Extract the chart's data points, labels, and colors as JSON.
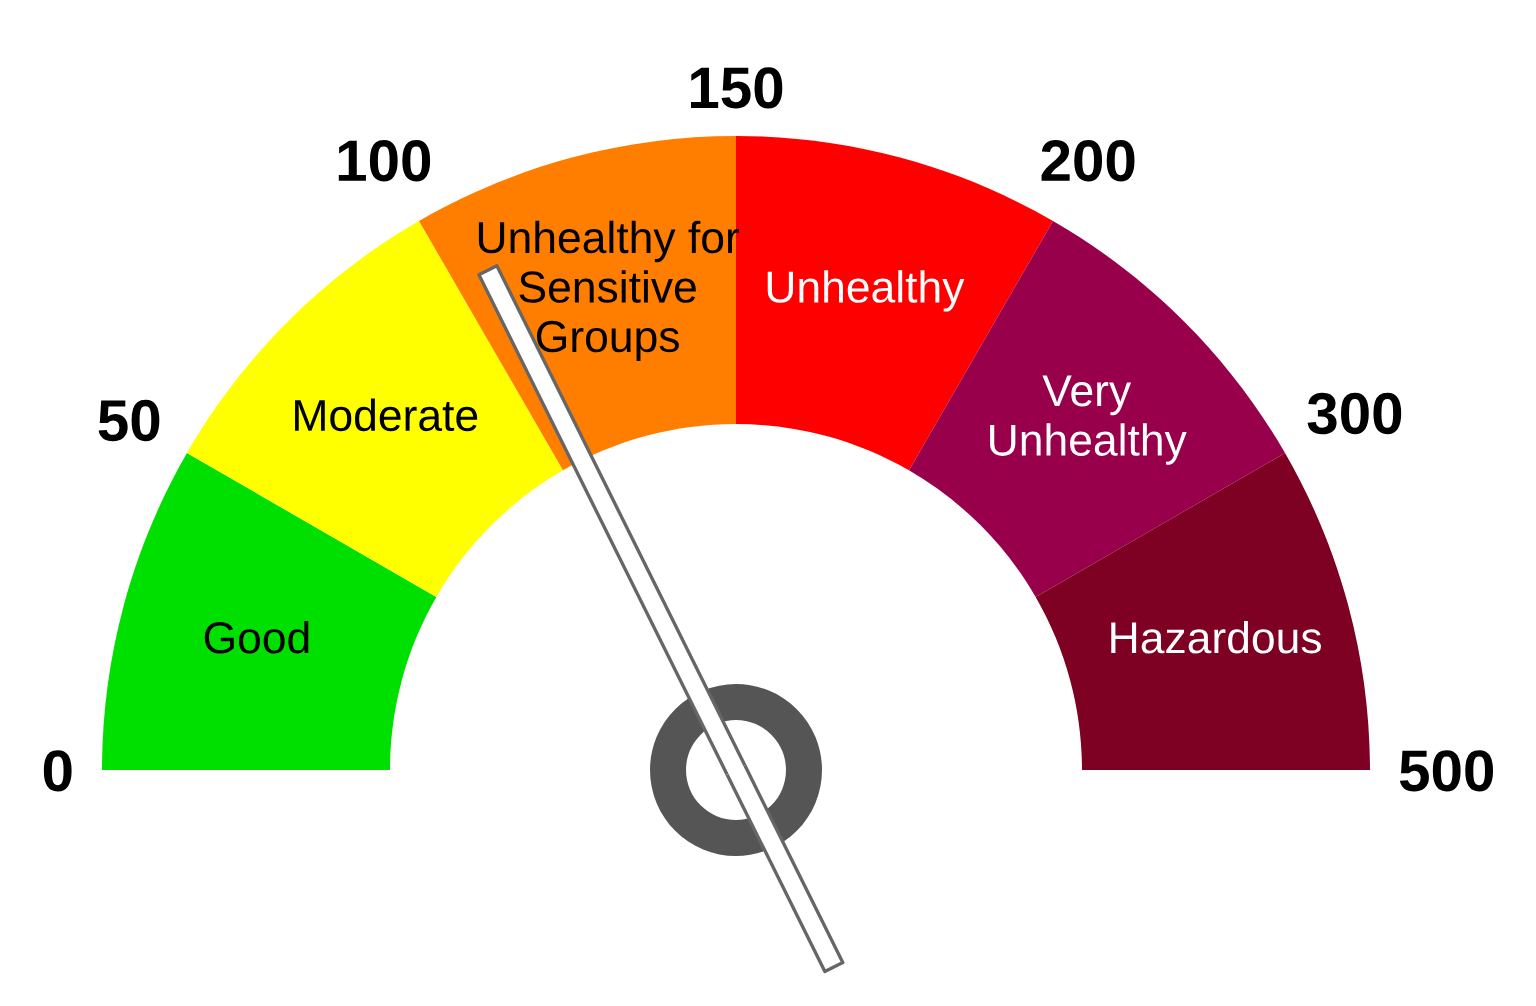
{
  "chart_data": {
    "type": "donut",
    "categories": [
      "Good",
      "Moderate",
      "Unhealthy for Sensitive Groups",
      "Unhealthy",
      "Very Unhealthy",
      "Hazardous"
    ],
    "values": [
      16.67,
      16.67,
      16.67,
      16.67,
      16.67,
      16.67
    ],
    "colors": [
      "#00e000",
      "#ffff00",
      "#ff7e00",
      "#ff0000",
      "#99004c",
      "#7e0023"
    ],
    "needle": "Unhealthy for Sensitive Groups",
    "annotations": [
      "0",
      "50",
      "100",
      "150",
      "200",
      "300",
      "500"
    ]
  }
}
